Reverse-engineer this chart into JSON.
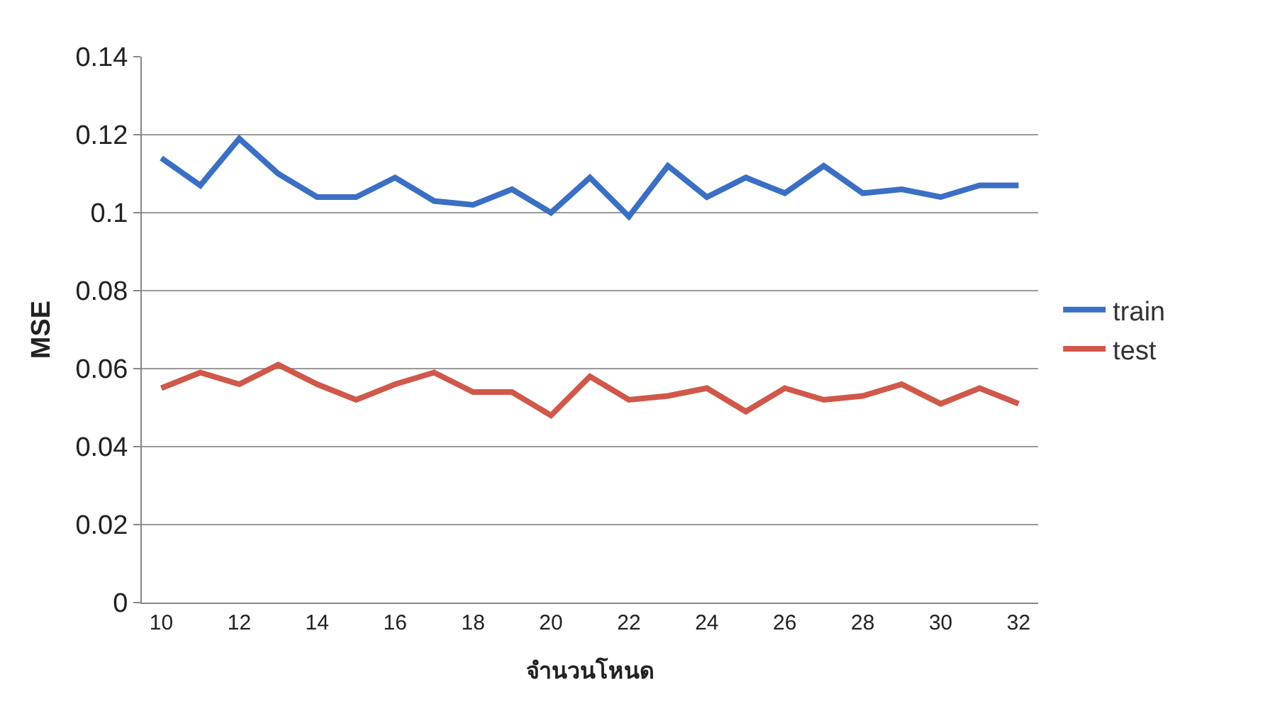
{
  "chart_data": {
    "type": "line",
    "xlabel": "จำนวนโหนด",
    "ylabel": "MSE",
    "x": [
      10,
      11,
      12,
      13,
      14,
      15,
      16,
      17,
      18,
      19,
      20,
      21,
      22,
      23,
      24,
      25,
      26,
      27,
      28,
      29,
      30,
      31,
      32
    ],
    "series": [
      {
        "name": "train",
        "color": "#3a6fc4",
        "values": [
          0.114,
          0.107,
          0.119,
          0.11,
          0.104,
          0.104,
          0.109,
          0.103,
          0.102,
          0.106,
          0.1,
          0.109,
          0.099,
          0.112,
          0.104,
          0.109,
          0.105,
          0.112,
          0.105,
          0.106,
          0.104,
          0.107,
          0.107
        ]
      },
      {
        "name": "test",
        "color": "#d0584a",
        "values": [
          0.055,
          0.059,
          0.056,
          0.061,
          0.056,
          0.052,
          0.056,
          0.059,
          0.054,
          0.054,
          0.048,
          0.058,
          0.052,
          0.053,
          0.055,
          0.049,
          0.055,
          0.052,
          0.053,
          0.056,
          0.051,
          0.055,
          0.051
        ]
      }
    ],
    "xlim": [
      9.5,
      32.5
    ],
    "xticks": [
      10,
      12,
      14,
      16,
      18,
      20,
      22,
      24,
      26,
      28,
      30,
      32
    ],
    "ylim": [
      0,
      0.14
    ],
    "yticks": [
      0,
      0.02,
      0.04,
      0.06,
      0.08,
      0.1,
      0.12,
      0.14
    ],
    "grid": "y",
    "legend": "right",
    "marker": "none",
    "line_style": "solid"
  }
}
